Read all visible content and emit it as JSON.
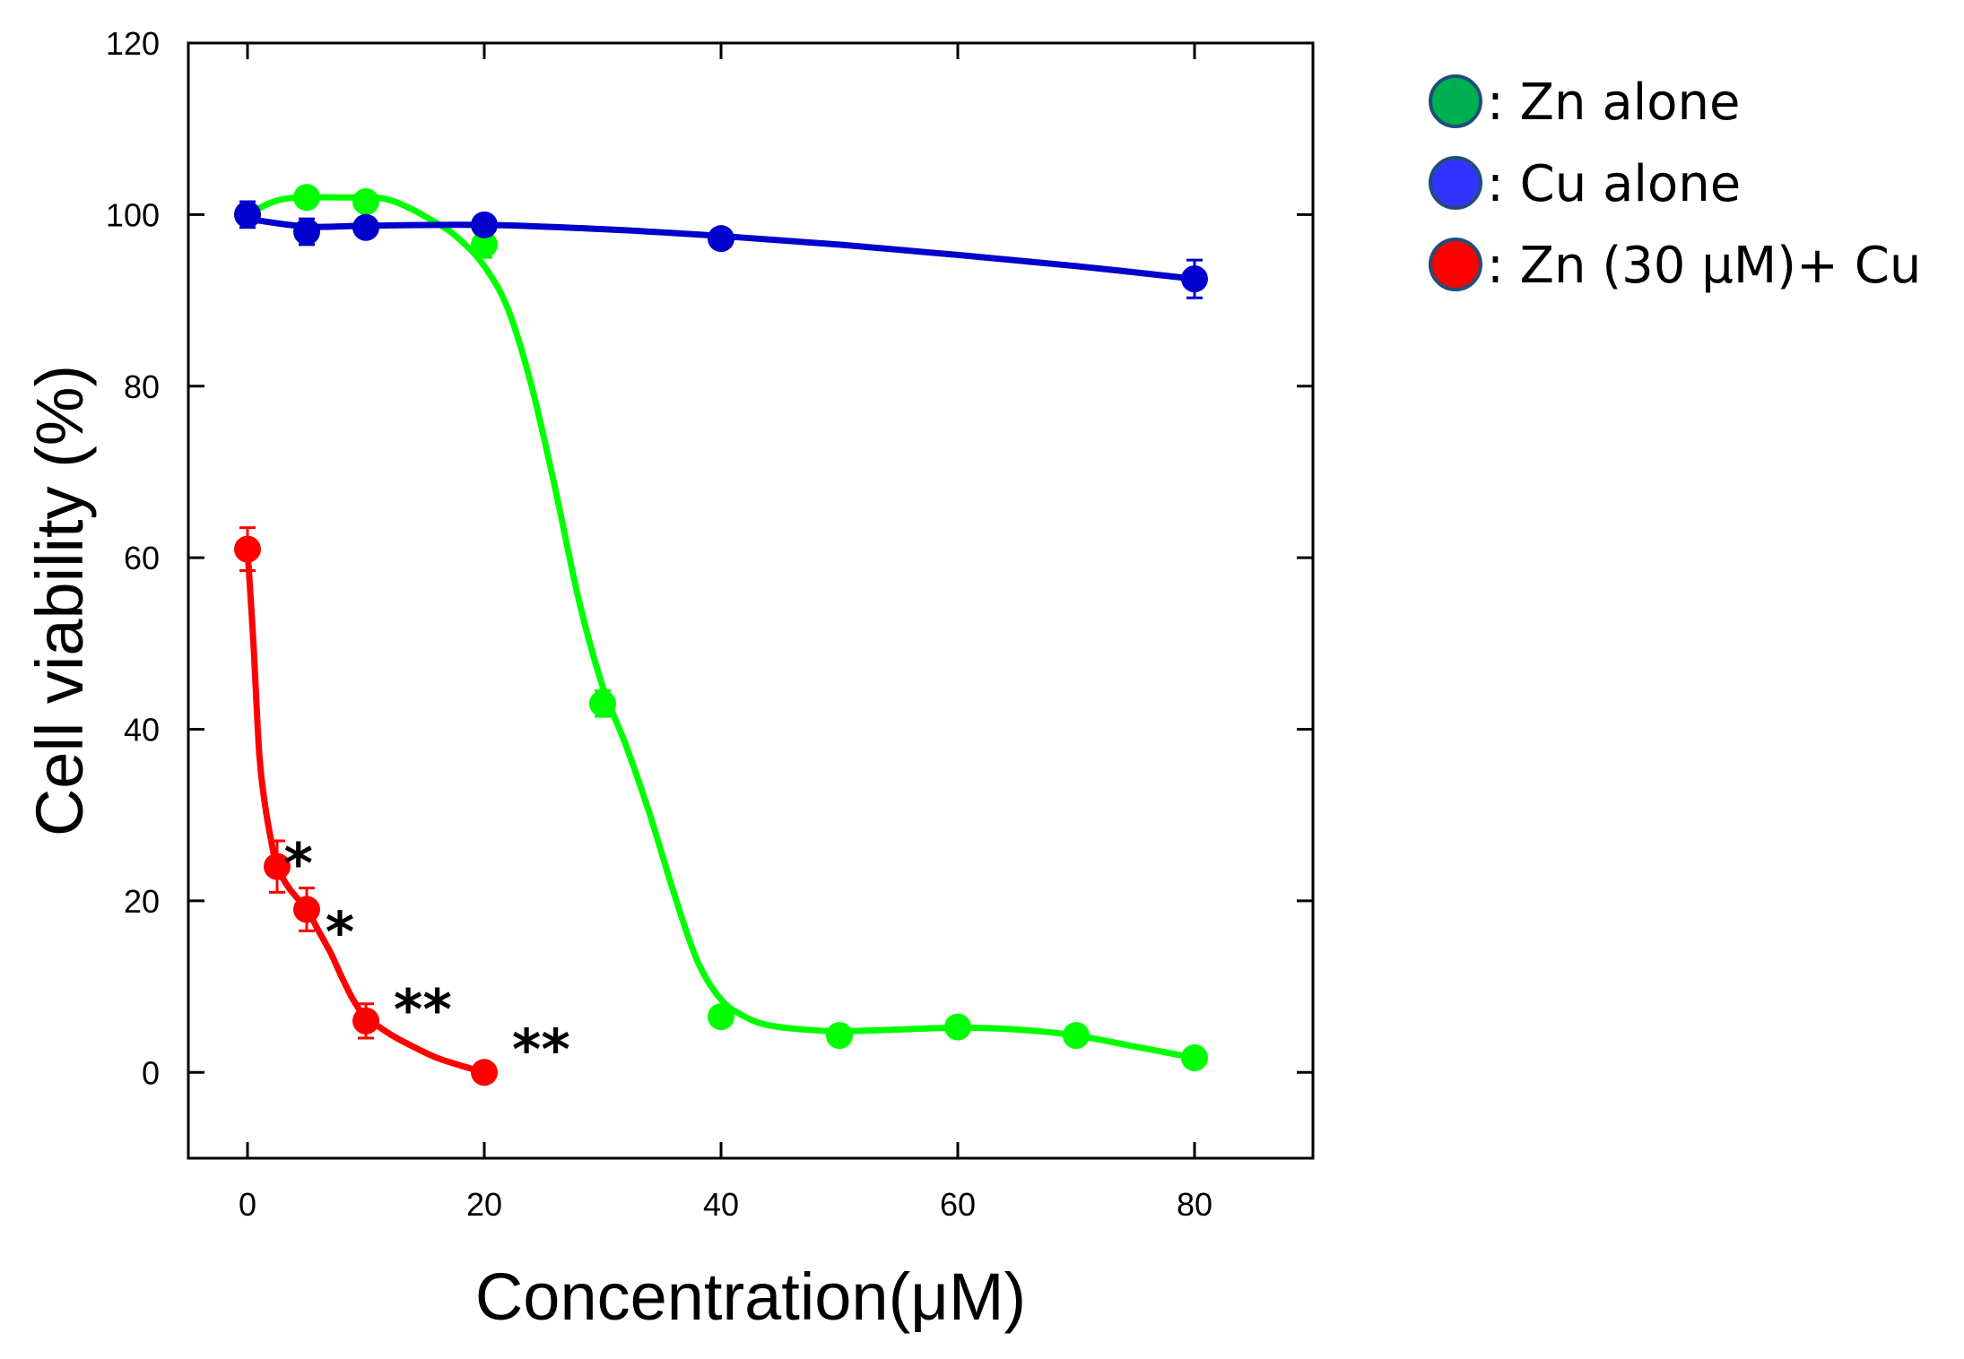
{
  "chart_data": {
    "type": "line",
    "title": "",
    "xlabel": "Concentration(μM)",
    "ylabel": "Cell viability (%)",
    "xlim": [
      -5,
      90
    ],
    "ylim": [
      -10,
      120
    ],
    "xticks": [
      0,
      20,
      40,
      60,
      80
    ],
    "yticks": [
      0,
      20,
      40,
      60,
      80,
      100,
      120
    ],
    "xtick_labels": [
      "0",
      "20",
      "40",
      "60",
      "80"
    ],
    "ytick_labels": [
      "0",
      "20",
      "40",
      "60",
      "80",
      "100",
      "120"
    ],
    "grid": false,
    "legend_position": "right",
    "series": [
      {
        "name": ": Zn alone",
        "color": "#00ff00",
        "marker_color": "#00b050",
        "x": [
          0,
          5,
          10,
          20,
          30,
          40,
          50,
          60,
          70,
          80
        ],
        "y": [
          100,
          102,
          101.5,
          96.5,
          43,
          6.5,
          4.3,
          5.3,
          4.3,
          1.7
        ],
        "error": [
          1,
          1,
          1,
          1.5,
          1.5,
          1,
          1,
          1,
          1,
          1
        ],
        "curve": [
          [
            0,
            100
          ],
          [
            3,
            101.8
          ],
          [
            8,
            102
          ],
          [
            12,
            101.7
          ],
          [
            16,
            99
          ],
          [
            18,
            97
          ],
          [
            20,
            94
          ],
          [
            22,
            89
          ],
          [
            24,
            80
          ],
          [
            26,
            68
          ],
          [
            28,
            55
          ],
          [
            30,
            45
          ],
          [
            32,
            38
          ],
          [
            34,
            30
          ],
          [
            36,
            21
          ],
          [
            38,
            13
          ],
          [
            40,
            8.5
          ],
          [
            42,
            6.5
          ],
          [
            44,
            5.5
          ],
          [
            47,
            5
          ],
          [
            50,
            4.8
          ],
          [
            55,
            5
          ],
          [
            60,
            5.2
          ],
          [
            65,
            5
          ],
          [
            70,
            4.3
          ],
          [
            75,
            3
          ],
          [
            80,
            1.7
          ]
        ]
      },
      {
        "name": ": Cu alone",
        "color": "#0000cc",
        "marker_color": "#3333ff",
        "x": [
          0,
          5,
          10,
          20,
          40,
          80
        ],
        "y": [
          100,
          98,
          98.5,
          98.8,
          97.2,
          92.5
        ],
        "error": [
          1.5,
          1.5,
          1,
          1,
          1,
          2.2
        ],
        "curve": [
          [
            0,
            99.5
          ],
          [
            5,
            98.6
          ],
          [
            10,
            98.7
          ],
          [
            20,
            98.8
          ],
          [
            30,
            98.3
          ],
          [
            40,
            97.5
          ],
          [
            50,
            96.5
          ],
          [
            60,
            95.3
          ],
          [
            70,
            94
          ],
          [
            80,
            92.5
          ]
        ]
      },
      {
        "name": ": Zn (30 μM)+ Cu",
        "color": "#ff0000",
        "marker_color": "#ff0000",
        "x": [
          0,
          2.5,
          5,
          10,
          20
        ],
        "y": [
          61,
          24,
          19,
          6,
          0
        ],
        "error": [
          2.5,
          3,
          2.5,
          2,
          0.5
        ],
        "curve": [
          [
            0,
            61
          ],
          [
            0.5,
            50
          ],
          [
            1,
            37
          ],
          [
            1.5,
            31
          ],
          [
            2,
            27
          ],
          [
            2.5,
            24
          ],
          [
            3.5,
            21.5
          ],
          [
            5,
            19
          ],
          [
            6,
            16.5
          ],
          [
            7,
            14
          ],
          [
            8,
            11
          ],
          [
            9,
            8.3
          ],
          [
            10,
            6.5
          ],
          [
            12,
            4.5
          ],
          [
            14,
            3
          ],
          [
            16,
            1.7
          ],
          [
            18,
            0.8
          ],
          [
            20,
            0
          ]
        ]
      }
    ],
    "annotations": [
      {
        "text": "*",
        "x": 4.3,
        "y": 25
      },
      {
        "text": "*",
        "x": 7.8,
        "y": 17
      },
      {
        "text": "**",
        "x": 14.8,
        "y": 8
      },
      {
        "text": "**",
        "x": 24.8,
        "y": 3.3
      }
    ]
  }
}
